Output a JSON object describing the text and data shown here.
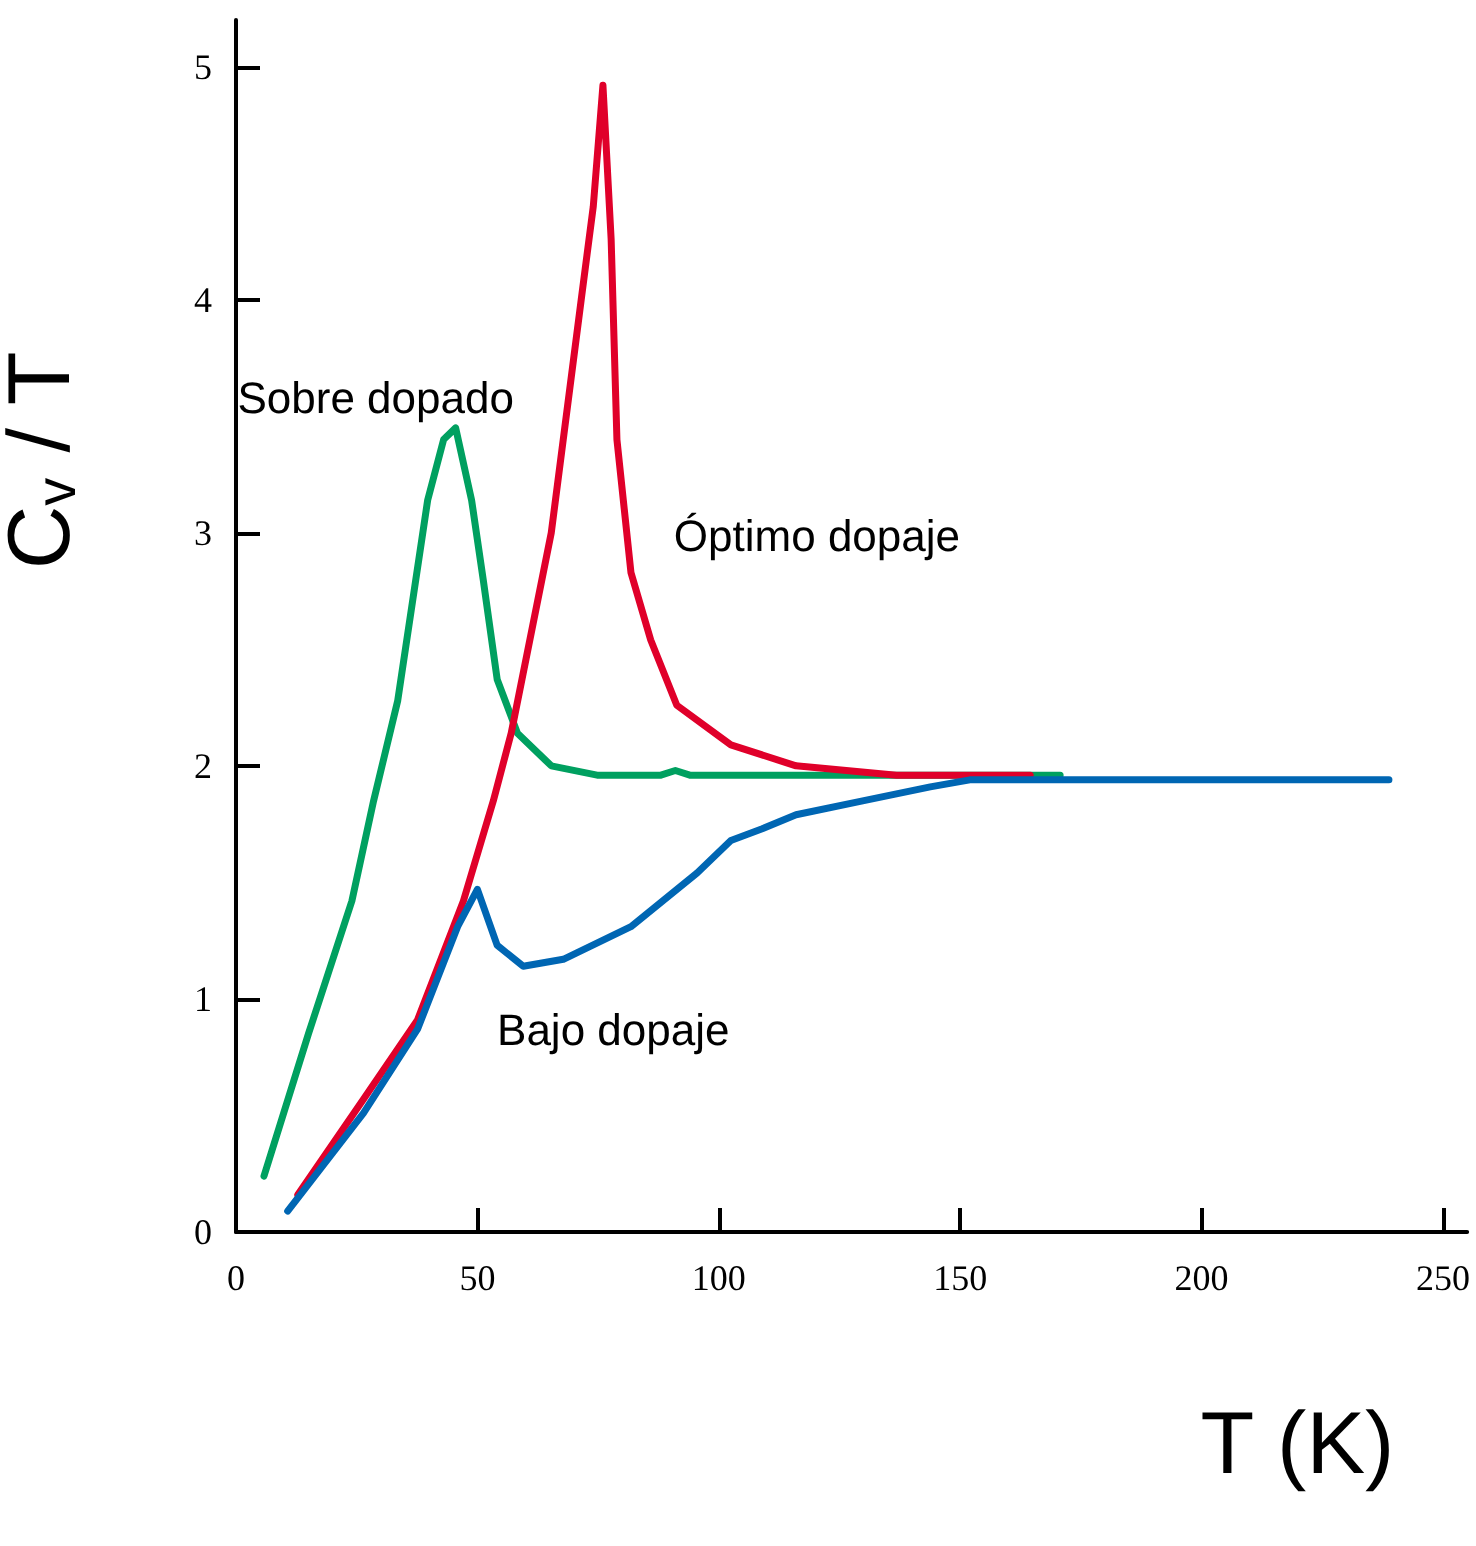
{
  "chart_data": {
    "type": "line",
    "xlabel": "T (K)",
    "ylabel": "C$_{v}$ / T",
    "xlim": [
      0,
      255
    ],
    "ylim": [
      0,
      5.2
    ],
    "xticks": [
      0,
      50,
      100,
      150,
      200,
      250
    ],
    "yticks": [
      0,
      1,
      2,
      3,
      4,
      5
    ],
    "grid": false,
    "marker": "none",
    "line_style": "solid",
    "series": [
      {
        "name": "Sobre dopado",
        "color": "#00a060",
        "x": [
          5.8,
          15,
          24,
          28.5,
          33.5,
          39.7,
          43,
          45.5,
          48.8,
          51.2,
          54.1,
          58.3,
          65.3,
          74.8,
          88,
          91,
          94,
          120,
          150,
          170.7
        ],
        "values": [
          0.24,
          0.85,
          1.42,
          1.85,
          2.28,
          3.14,
          3.4,
          3.45,
          3.14,
          2.8,
          2.37,
          2.14,
          2.0,
          1.96,
          1.96,
          1.98,
          1.96,
          1.96,
          1.96,
          1.96
        ]
      },
      {
        "name": "Óptimo dopaje",
        "color": "#e0002a",
        "x": [
          12.8,
          26.4,
          37.6,
          47.1,
          53.3,
          57,
          65.3,
          71.5,
          74,
          76,
          77.7,
          78.9,
          81.8,
          85.9,
          91.3,
          102.5,
          116,
          136.8,
          164.5
        ],
        "values": [
          0.16,
          0.57,
          0.91,
          1.42,
          1.85,
          2.14,
          3.0,
          4.0,
          4.4,
          4.92,
          4.26,
          3.4,
          2.83,
          2.54,
          2.26,
          2.09,
          2.0,
          1.96,
          1.96
        ]
      },
      {
        "name": "Bajo dopaje",
        "color": "#0066b3",
        "x": [
          10.7,
          26.4,
          37.6,
          45.9,
          50,
          54.1,
          59.5,
          67.8,
          81.8,
          95.5,
          102.5,
          109,
          116,
          129.8,
          143.8,
          152,
          180,
          238.8
        ],
        "values": [
          0.09,
          0.51,
          0.87,
          1.31,
          1.47,
          1.23,
          1.14,
          1.17,
          1.31,
          1.54,
          1.68,
          1.73,
          1.79,
          1.85,
          1.91,
          1.94,
          1.94,
          1.94
        ]
      }
    ]
  }
}
